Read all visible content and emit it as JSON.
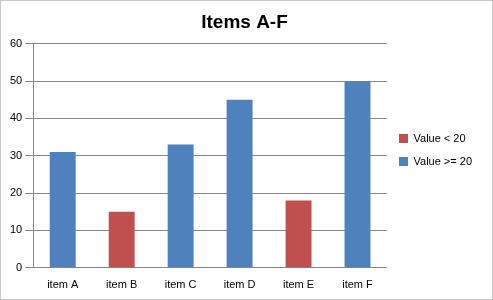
{
  "chart_data": {
    "type": "bar",
    "title": "Items A-F",
    "categories": [
      "item A",
      "item B",
      "item C",
      "item D",
      "item E",
      "item F"
    ],
    "series": [
      {
        "name": "Value < 20",
        "color": "#c0504d",
        "values": [
          null,
          15,
          null,
          null,
          18,
          null
        ]
      },
      {
        "name": "Value >= 20",
        "color": "#4f81bd",
        "values": [
          31,
          null,
          33,
          45,
          null,
          50
        ]
      }
    ],
    "ylim": [
      0,
      60
    ],
    "yticks": [
      0,
      10,
      20,
      30,
      40,
      50,
      60
    ],
    "grid": true,
    "legend": "right"
  }
}
